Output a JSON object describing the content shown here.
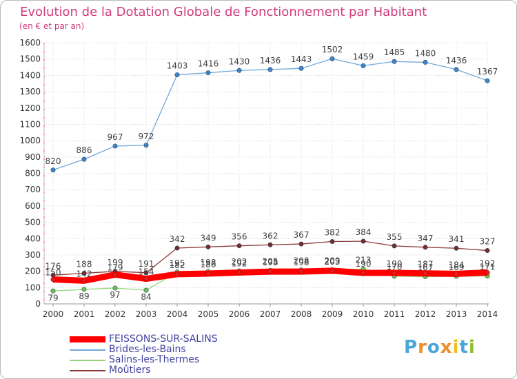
{
  "title": "Evolution de la Dotation Globale de Fonctionnement par Habitant",
  "subtitle": "(en € et par an)",
  "logo": {
    "text": "Proxiti",
    "letters": [
      "P",
      "r",
      "o",
      "x",
      "i",
      "t",
      "i"
    ],
    "colors": [
      "#4da6d9",
      "#e8902a",
      "#4da6d9",
      "#e8902a",
      "#f0c020",
      "#4da6d9",
      "#90c030"
    ]
  },
  "chart_data": {
    "type": "line",
    "title": "Evolution de la Dotation Globale de Fonctionnement par Habitant",
    "subtitle": "(en € et par an)",
    "xlabel": "",
    "ylabel": "",
    "ylim": [
      0,
      1600
    ],
    "yticks": [
      0,
      100,
      200,
      300,
      400,
      500,
      600,
      700,
      800,
      900,
      1000,
      1100,
      1200,
      1300,
      1400,
      1500,
      1600
    ],
    "x": [
      "2000",
      "2001",
      "2002",
      "2003",
      "2004",
      "2005",
      "2006",
      "2007",
      "2008",
      "2009",
      "2010",
      "2011",
      "2012",
      "2013",
      "2014"
    ],
    "grid": true,
    "legend_position": "bottom-left",
    "series": [
      {
        "name": "FEISSONS-SUR-SALINS",
        "color": "#ff0000",
        "marker_color": "#e02020",
        "thick": true,
        "values": [
          150,
          142,
          179,
          154,
          182,
          186,
          192,
          198,
          198,
          203,
          190,
          190,
          187,
          184,
          192
        ],
        "labels": [
          "150",
          "142",
          "179",
          "154",
          "182",
          "186",
          "192",
          "198",
          "198",
          "203",
          "190",
          "190",
          "187",
          "184",
          "192"
        ]
      },
      {
        "name": "Brides-les-Bains",
        "color": "#6fa8dc",
        "marker_color": "#3d85c6",
        "thick": false,
        "values": [
          820,
          886,
          967,
          972,
          1403,
          1416,
          1430,
          1436,
          1443,
          1502,
          1459,
          1485,
          1480,
          1436,
          1367
        ],
        "labels": [
          "820",
          "886",
          "967",
          "972",
          "1403",
          "1416",
          "1430",
          "1436",
          "1443",
          "1502",
          "1459",
          "1485",
          "1480",
          "1436",
          "1367"
        ]
      },
      {
        "name": "Salins-les-Thermes",
        "color": "#93d67a",
        "marker_color": "#6cc644",
        "thick": false,
        "values": [
          79,
          89,
          97,
          84,
          195,
          198,
          202,
          205,
          208,
          209,
          213,
          170,
          167,
          169,
          171
        ],
        "labels": [
          "79",
          "89",
          "97",
          "84",
          "195",
          "198",
          "202",
          "205",
          "208",
          "209",
          "213",
          "170",
          "167",
          "169",
          "171"
        ]
      },
      {
        "name": "Moûtiers",
        "color": "#8b3a3a",
        "marker_color": "#7a2a2a",
        "thick": false,
        "values": [
          176,
          188,
          199,
          191,
          342,
          349,
          356,
          362,
          367,
          382,
          384,
          355,
          347,
          341,
          327
        ],
        "labels": [
          "176",
          "188",
          "199",
          "191",
          "342",
          "349",
          "356",
          "362",
          "367",
          "382",
          "384",
          "355",
          "347",
          "341",
          "327"
        ]
      }
    ]
  }
}
